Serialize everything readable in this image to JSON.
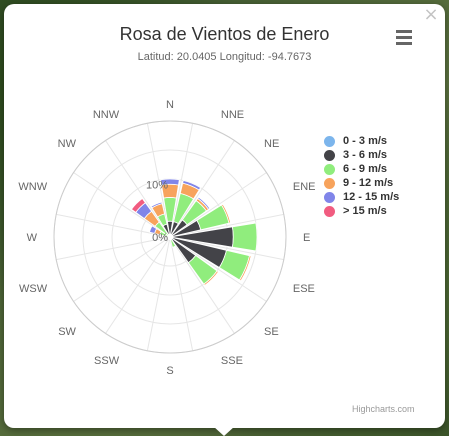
{
  "popup": {
    "title": "Rosa de Vientos de Enero",
    "subtitle": "Latitud: 20.0405 Longitud: -94.7673",
    "close_label": "×",
    "credits": "Highcharts.com"
  },
  "icons": {
    "close": "close-icon",
    "menu": "hamburger-menu-icon"
  },
  "chart_data": {
    "type": "bar",
    "subtype": "polar-stacked-column",
    "title": "Rosa de Vientos de Enero",
    "subtitle": "Latitud: 20.0405 Longitud: -94.7673",
    "categories": [
      "N",
      "NNE",
      "NE",
      "ENE",
      "E",
      "ESE",
      "SE",
      "SSE",
      "S",
      "SSW",
      "SW",
      "WSW",
      "W",
      "WNW",
      "NW",
      "NNW"
    ],
    "radial_max": 22,
    "radial_ticks": [
      {
        "value": 0,
        "label": "0%"
      },
      {
        "value": 10,
        "label": "10%"
      }
    ],
    "legend_position": "right",
    "series": [
      {
        "name": "0 - 3 m/s",
        "color": "#7cb5ec",
        "values": [
          0.5,
          0.5,
          0.5,
          0.5,
          0.5,
          0.5,
          0.5,
          0.5,
          0.5,
          0.5,
          0.5,
          0.5,
          0.5,
          0.5,
          0.5,
          0.5
        ]
      },
      {
        "name": "3 - 6 m/s",
        "color": "#434348",
        "values": [
          2.5,
          2.5,
          3.5,
          5.5,
          11.5,
          10.5,
          5.5,
          0,
          0,
          0,
          0,
          0,
          0,
          0,
          0,
          2.0
        ]
      },
      {
        "name": "6 - 9 m/s",
        "color": "#90ed7d",
        "values": [
          4.5,
          5.5,
          4.5,
          5.5,
          4.5,
          4.5,
          5.0,
          1.5,
          0,
          0,
          0,
          0,
          0,
          1.5,
          3.0,
          2.0
        ]
      },
      {
        "name": "9 - 12 m/s",
        "color": "#f7a35c",
        "values": [
          2.5,
          2.0,
          0.5,
          0.3,
          0,
          0.3,
          0.3,
          0,
          0,
          0,
          0,
          0,
          0,
          1.0,
          2.5,
          2.0
        ]
      },
      {
        "name": "12 - 15 m/s",
        "color": "#8085e9",
        "values": [
          1.0,
          0.5,
          0.3,
          0,
          0,
          0,
          0,
          0,
          0,
          0,
          0,
          0,
          0,
          1.0,
          2.0,
          0.3
        ]
      },
      {
        "name": "> 15 m/s",
        "color": "#f15c80",
        "values": [
          0,
          0,
          0,
          0,
          0,
          0,
          0,
          0,
          0,
          0,
          0,
          0,
          0,
          0,
          1.0,
          0
        ]
      }
    ]
  }
}
